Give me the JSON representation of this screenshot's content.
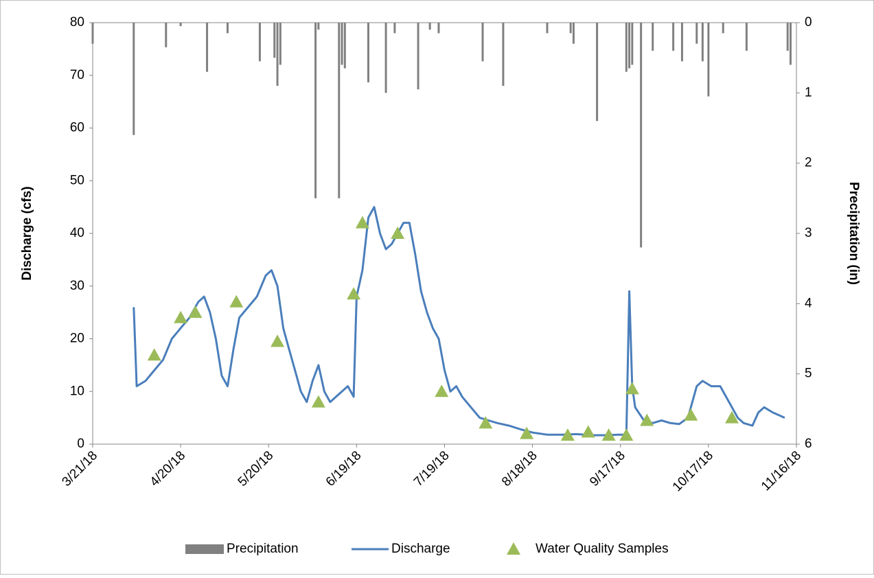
{
  "chart_data": {
    "type": "combo",
    "y_title": "Discharge (cfs)",
    "y2_title": "Precipitation (in)",
    "xlim": [
      "3/21/18",
      "11/16/18"
    ],
    "xticks": [
      "3/21/18",
      "4/20/18",
      "5/20/18",
      "6/19/18",
      "7/19/18",
      "8/18/18",
      "9/17/18",
      "10/17/18",
      "11/16/18"
    ],
    "ylim": [
      0,
      80
    ],
    "yticks": [
      0,
      10,
      20,
      30,
      40,
      50,
      60,
      70,
      80
    ],
    "y2lim": [
      0,
      6
    ],
    "y2ticks": [
      0,
      1,
      2,
      3,
      4,
      5,
      6
    ],
    "y2_inverted": true,
    "legend": "bottom",
    "series": [
      {
        "name": "Precipitation",
        "type": "bar",
        "axis": "y2",
        "color": "#808080",
        "x": [
          "3/21/18",
          "4/4/18",
          "4/15/18",
          "4/20/18",
          "4/29/18",
          "5/6/18",
          "5/17/18",
          "5/22/18",
          "5/23/18",
          "5/24/18",
          "6/5/18",
          "6/6/18",
          "6/13/18",
          "6/14/18",
          "6/15/18",
          "6/23/18",
          "6/29/18",
          "7/2/18",
          "7/10/18",
          "7/14/18",
          "7/17/18",
          "8/1/18",
          "8/8/18",
          "8/23/18",
          "8/31/18",
          "9/1/18",
          "9/9/18",
          "9/19/18",
          "9/20/18",
          "9/21/18",
          "9/24/18",
          "9/28/18",
          "10/5/18",
          "10/8/18",
          "10/13/18",
          "10/15/18",
          "10/17/18",
          "10/22/18",
          "10/30/18",
          "11/13/18",
          "11/14/18"
        ],
        "values": [
          0.3,
          1.6,
          0.35,
          0.05,
          0.7,
          0.15,
          0.55,
          0.5,
          0.9,
          0.6,
          2.5,
          0.1,
          2.5,
          0.6,
          0.65,
          0.85,
          1.0,
          0.15,
          0.95,
          0.1,
          0.15,
          0.55,
          0.9,
          0.15,
          0.15,
          0.3,
          1.4,
          0.7,
          0.65,
          0.6,
          3.2,
          0.4,
          0.4,
          0.55,
          0.3,
          0.55,
          1.05,
          0.15,
          0.4,
          0.4,
          0.6
        ]
      },
      {
        "name": "Discharge",
        "type": "line",
        "color": "#4a7ebb",
        "x": [
          "4/4/18",
          "4/5/18",
          "4/8/18",
          "4/11/18",
          "4/14/18",
          "4/17/18",
          "4/20/18",
          "4/23/18",
          "4/26/18",
          "4/28/18",
          "4/30/18",
          "5/2/18",
          "5/4/18",
          "5/6/18",
          "5/8/18",
          "5/10/18",
          "5/13/18",
          "5/16/18",
          "5/19/18",
          "5/21/18",
          "5/23/18",
          "5/25/18",
          "5/27/18",
          "5/29/18",
          "5/31/18",
          "6/2/18",
          "6/4/18",
          "6/6/18",
          "6/8/18",
          "6/10/18",
          "6/12/18",
          "6/14/18",
          "6/16/18",
          "6/18/18",
          "6/19/18",
          "6/21/18",
          "6/23/18",
          "6/25/18",
          "6/27/18",
          "6/29/18",
          "7/1/18",
          "7/3/18",
          "7/5/18",
          "7/7/18",
          "7/9/18",
          "7/11/18",
          "7/13/18",
          "7/15/18",
          "7/17/18",
          "7/19/18",
          "7/21/18",
          "7/23/18",
          "7/25/18",
          "7/28/18",
          "7/31/18",
          "8/3/18",
          "8/6/18",
          "8/10/18",
          "8/14/18",
          "8/18/18",
          "8/23/18",
          "8/28/18",
          "9/2/18",
          "9/7/18",
          "9/12/18",
          "9/16/18",
          "9/19/18",
          "9/20/18",
          "9/21/18",
          "9/22/18",
          "9/25/18",
          "9/28/18",
          "10/1/18",
          "10/4/18",
          "10/7/18",
          "10/10/18",
          "10/13/18",
          "10/15/18",
          "10/18/18",
          "10/21/18",
          "10/24/18",
          "10/27/18",
          "10/29/18",
          "11/1/18",
          "11/3/18",
          "11/5/18",
          "11/8/18",
          "11/10/18",
          "11/12/18"
        ],
        "values": [
          26,
          11,
          12,
          14,
          16,
          20,
          22,
          24,
          27,
          28,
          25,
          20,
          13,
          11,
          18,
          24,
          26,
          28,
          32,
          33,
          30,
          22,
          18,
          14,
          10,
          8,
          12,
          15,
          10,
          8,
          9,
          10,
          11,
          9,
          28,
          33,
          43,
          45,
          40,
          37,
          38,
          40,
          42,
          42,
          36,
          29,
          25,
          22,
          20,
          14,
          10,
          11,
          9,
          7,
          5,
          4.5,
          4,
          3.5,
          2.8,
          2.2,
          1.8,
          1.8,
          1.9,
          1.7,
          1.7,
          1.8,
          1.8,
          29,
          11,
          7,
          4.5,
          4,
          4.5,
          4,
          3.8,
          5,
          11,
          12,
          11,
          11,
          8,
          5,
          4,
          3.5,
          6,
          7,
          6,
          5.5,
          5
        ]
      },
      {
        "name": "Water Quality Samples",
        "type": "scatter",
        "color": "#9bbb59",
        "x": [
          "4/11/18",
          "4/20/18",
          "4/25/18",
          "5/9/18",
          "5/23/18",
          "6/6/18",
          "6/18/18",
          "6/21/18",
          "7/3/18",
          "7/18/18",
          "8/2/18",
          "8/16/18",
          "8/30/18",
          "9/6/18",
          "9/13/18",
          "9/19/18",
          "9/21/18",
          "9/26/18",
          "10/11/18",
          "10/25/18"
        ],
        "values": [
          16.9,
          24,
          25,
          27,
          19.5,
          8,
          28.5,
          42,
          40,
          10,
          4,
          2,
          1.7,
          2.3,
          1.7,
          1.7,
          10.5,
          4.5,
          5.5,
          5
        ]
      }
    ]
  }
}
